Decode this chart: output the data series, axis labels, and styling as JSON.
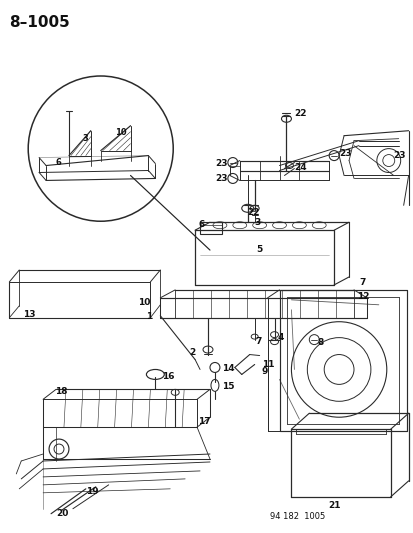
{
  "title": "8–1005",
  "footer": "94 182  1005",
  "bg_color": "#ffffff",
  "fig_width": 4.14,
  "fig_height": 5.33,
  "dpi": 100,
  "title_fontsize": 11,
  "title_fontweight": "bold",
  "footer_fontsize": 6.0,
  "label_fontsize": 6.5,
  "line_color": "#2a2a2a",
  "label_color": "#111111"
}
